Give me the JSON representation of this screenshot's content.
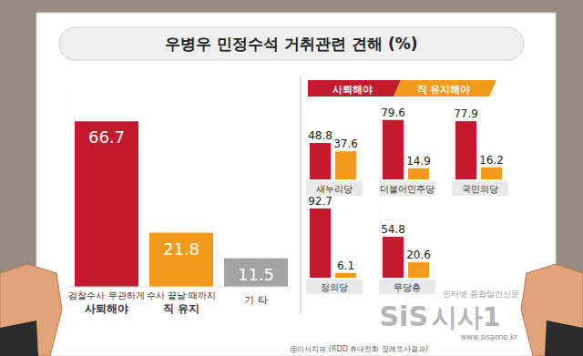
{
  "chart_data": [
    {
      "type": "bar",
      "title": "우병우 민정수석 거취관련 견해 (%)",
      "categories": [
        "검찰수사 무관하게\n사퇴해야",
        "수사 끝날 때까지\n직 유지",
        "기 타"
      ],
      "values": [
        66.7,
        21.8,
        11.5
      ],
      "colors": [
        "#c41a2e",
        "#f29a1c",
        "#a3a3a3"
      ],
      "ylim": [
        0,
        80
      ],
      "data_labels": true,
      "tick_labels": "x",
      "annotations": [
        "인터넷 종합일간신문",
        "SiS",
        "시사1",
        "www.sisaone.kr",
        "@리서치뷰 (RDD 휴대전화 정례조사결과)"
      ]
    },
    {
      "type": "bar",
      "categories": [
        "새누리당",
        "더불어민주당",
        "국민의당",
        "정의당",
        "무당층"
      ],
      "series": [
        {
          "name": "사퇴해야",
          "color": "#c41a2e",
          "values": [
            48.8,
            79.6,
            77.9,
            92.7,
            54.8
          ]
        },
        {
          "name": "직 유지해야",
          "color": "#f29a1c",
          "values": [
            37.6,
            14.9,
            16.2,
            6.1,
            20.6
          ]
        }
      ],
      "ylim": [
        0,
        100
      ],
      "data_labels": true,
      "tick_labels": "x",
      "legend": "top"
    }
  ]
}
